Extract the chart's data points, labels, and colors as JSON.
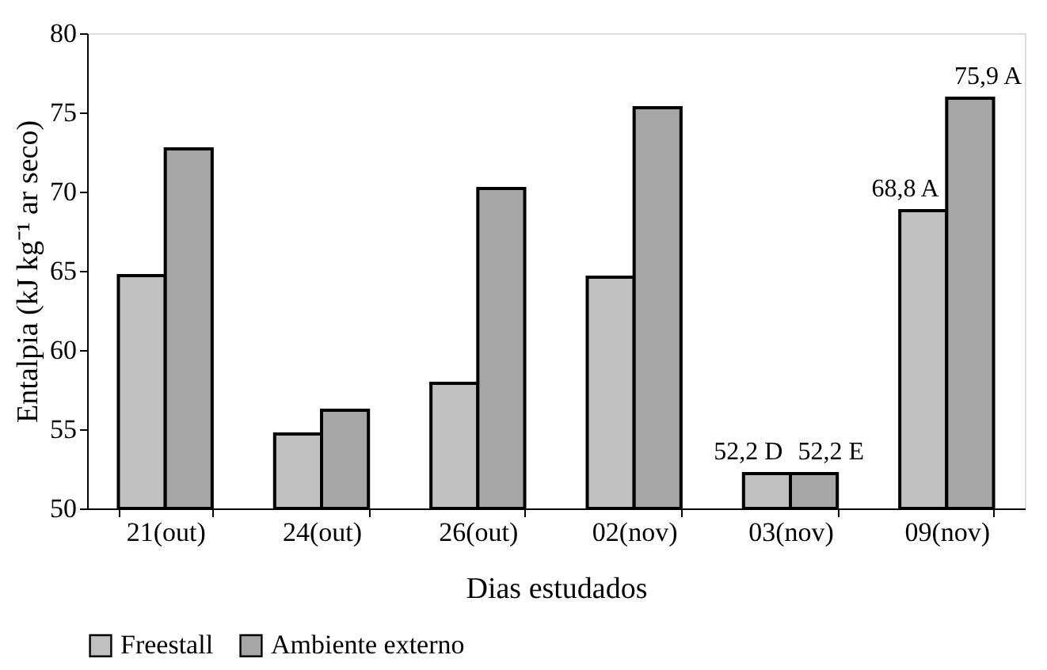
{
  "chart_data": {
    "type": "bar",
    "xlabel": "Dias estudados",
    "ylabel": "Entalpia (kJ kg⁻¹ ar seco)",
    "categories": [
      "21(out)",
      "24(out)",
      "26(out)",
      "02(nov)",
      "03(nov)",
      "09(nov)"
    ],
    "series": [
      {
        "name": "Freestall",
        "color": "#c0c0c0",
        "values": [
          64.7,
          54.7,
          57.9,
          64.6,
          52.2,
          68.8
        ],
        "value_labels": [
          null,
          null,
          null,
          null,
          "52,2 D",
          "68,8 A"
        ]
      },
      {
        "name": "Ambiente externo",
        "color": "#a6a6a6",
        "values": [
          72.7,
          56.2,
          70.2,
          75.3,
          52.2,
          75.9
        ],
        "value_labels": [
          null,
          null,
          null,
          null,
          "52,2 E",
          "75,9 A"
        ]
      }
    ],
    "ylim": [
      50,
      80
    ],
    "yticks": [
      50,
      55,
      60,
      65,
      70,
      75,
      80
    ],
    "grid": false,
    "legend": "bottom"
  }
}
